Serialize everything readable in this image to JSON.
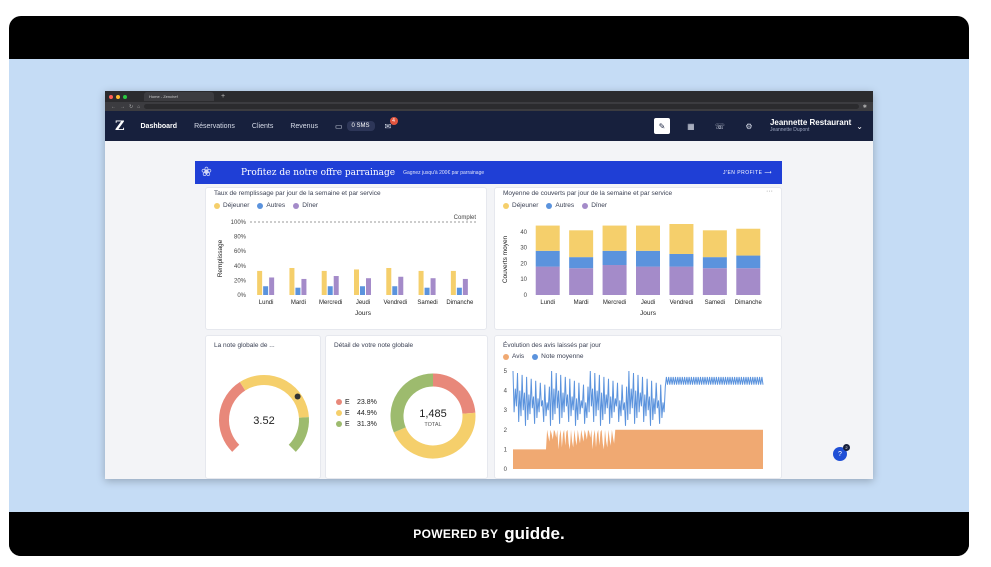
{
  "browser": {
    "tab_title": "Home - Zenchef",
    "new_tab": "+"
  },
  "nav": {
    "logo": "Z",
    "items": [
      {
        "label": "Dashboard",
        "active": true
      },
      {
        "label": "Réservations",
        "active": false
      },
      {
        "label": "Clients",
        "active": false
      },
      {
        "label": "Revenus",
        "active": false
      }
    ],
    "sms_label": "0 SMS",
    "notif_count": "4",
    "user_name": "Jeannette Restaurant",
    "user_sub": "Jeannette Dupont"
  },
  "banner": {
    "title": "Profitez de notre offre parrainage",
    "subtitle": "Gagnez jusqu'à 200€ par parrainage",
    "cta": "J'EN PROFITE ⟶"
  },
  "colors": {
    "dejeuner": "#f5cf6b",
    "autres": "#5b93dd",
    "diner": "#a48bc9",
    "avis": "#f0a972",
    "note": "#5b93dd",
    "nav": "#17203d",
    "banner": "#1f3fd6"
  },
  "chart_data": [
    {
      "type": "bar",
      "title": "Taux de remplissage par jour de la semaine et par service",
      "xlabel": "Jours",
      "ylabel": "Remplissage",
      "categories": [
        "Lundi",
        "Mardi",
        "Mercredi",
        "Jeudi",
        "Vendredi",
        "Samedi",
        "Dimanche"
      ],
      "yticks": [
        "0%",
        "20%",
        "40%",
        "60%",
        "80%",
        "100%"
      ],
      "ylim": [
        0,
        100
      ],
      "reference_line": {
        "label": "Complet",
        "value": 100
      },
      "series": [
        {
          "name": "Déjeuner",
          "values": [
            33,
            37,
            33,
            35,
            37,
            33,
            33
          ]
        },
        {
          "name": "Autres",
          "values": [
            12,
            10,
            12,
            12,
            12,
            10,
            10
          ]
        },
        {
          "name": "Dîner",
          "values": [
            24,
            22,
            26,
            23,
            25,
            23,
            22
          ]
        }
      ]
    },
    {
      "type": "bar",
      "stacked": true,
      "title": "Moyenne de couverts par jour de la semaine et par service",
      "xlabel": "Jours",
      "ylabel": "Couverts moyen",
      "categories": [
        "Lundi",
        "Mardi",
        "Mercredi",
        "Jeudi",
        "Vendredi",
        "Samedi",
        "Dimanche"
      ],
      "yticks": [
        "0",
        "10",
        "20",
        "30",
        "40"
      ],
      "ylim": [
        0,
        45
      ],
      "series": [
        {
          "name": "Déjeuner",
          "values": [
            16,
            17,
            16,
            16,
            19,
            17,
            17
          ]
        },
        {
          "name": "Autres",
          "values": [
            10,
            7,
            9,
            10,
            8,
            7,
            8
          ]
        },
        {
          "name": "Dîner",
          "values": [
            18,
            17,
            19,
            18,
            18,
            17,
            17
          ]
        }
      ]
    },
    {
      "type": "gauge",
      "title": "La note globale de ...",
      "value": 3.52
    },
    {
      "type": "pie",
      "title": "Détail de votre note globale",
      "total_value": "1,485",
      "total_label": "TOTAL",
      "slices": [
        {
          "label": "E",
          "pct": "23.8%",
          "value": 23.8,
          "color": "#e8887a"
        },
        {
          "label": "E",
          "pct": "44.9%",
          "value": 44.9,
          "color": "#f5cf6b"
        },
        {
          "label": "E",
          "pct": "31.3%",
          "value": 31.3,
          "color": "#9dbb6e"
        }
      ]
    },
    {
      "type": "area",
      "title": "Évolution des avis laissés par jour",
      "yticks": [
        "0",
        "1",
        "2",
        "3",
        "4",
        "5"
      ],
      "ylim": [
        0,
        5
      ],
      "series": [
        {
          "name": "Avis"
        },
        {
          "name": "Note moyenne"
        }
      ]
    }
  ],
  "help": {
    "label": "?",
    "count": "2"
  },
  "footer": {
    "powered": "POWERED BY",
    "brand": "guidde."
  }
}
